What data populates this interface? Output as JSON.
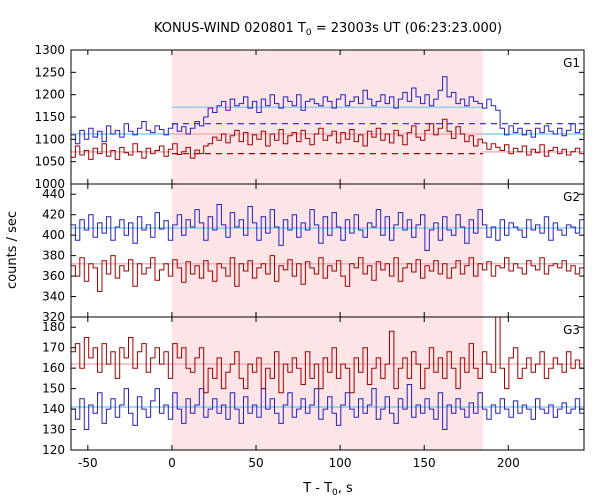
{
  "chart_data": [
    {
      "type": "line",
      "panel": "G1",
      "title": "KONUS-WIND 020801 T",
      "title_sub": "0",
      "title_rest": " = 23003s UT (06:23:23.000)",
      "label": "G1",
      "ylim": [
        1000,
        1300
      ],
      "yticks": [
        1000,
        1050,
        1100,
        1150,
        1200,
        1250,
        1300
      ],
      "xlim": [
        -60,
        245
      ],
      "highlight": [
        0,
        185
      ],
      "colors": {
        "blue": "#2222bb",
        "red": "#a00000",
        "bg_blue": "#6fc8f0",
        "bg_red": "#f0a0a8",
        "shade": "#fde4e6"
      },
      "series": [
        {
          "color": "blue",
          "values": [
            1110,
            1090,
            1120,
            1100,
            1125,
            1105,
            1118,
            1095,
            1130,
            1112,
            1120,
            1105,
            1135,
            1118,
            1110,
            1125,
            1140,
            1120,
            1115,
            1130,
            1122,
            1110,
            1125,
            1135,
            1118,
            1128,
            1112,
            1125,
            1140,
            1130,
            1150,
            1170,
            1160,
            1175,
            1185,
            1165,
            1190,
            1175,
            1180,
            1195,
            1170,
            1185,
            1160,
            1190,
            1175,
            1200,
            1180,
            1170,
            1195,
            1185,
            1175,
            1200,
            1165,
            1185,
            1190,
            1180,
            1175,
            1195,
            1185,
            1170,
            1190,
            1200,
            1175,
            1185,
            1195,
            1180,
            1210,
            1190,
            1175,
            1185,
            1200,
            1180,
            1195,
            1170,
            1190,
            1205,
            1185,
            1215,
            1195,
            1180,
            1200,
            1175,
            1190,
            1210,
            1240,
            1195,
            1205,
            1180,
            1190,
            1175,
            1195,
            1185,
            1180,
            1170,
            1190,
            1175,
            1165,
            1125,
            1110,
            1130,
            1115,
            1125,
            1110,
            1120,
            1105,
            1125,
            1115,
            1130,
            1118,
            1112,
            1125,
            1108,
            1120,
            1135,
            1115,
            1122
          ]
        },
        {
          "color": "red",
          "values": [
            1060,
            1085,
            1065,
            1075,
            1055,
            1080,
            1068,
            1090,
            1062,
            1075,
            1055,
            1082,
            1070,
            1065,
            1090,
            1072,
            1058,
            1080,
            1068,
            1075,
            1085,
            1062,
            1078,
            1090,
            1066,
            1072,
            1082,
            1058,
            1076,
            1068,
            1085,
            1090,
            1105,
            1098,
            1112,
            1092,
            1108,
            1120,
            1095,
            1115,
            1088,
            1110,
            1100,
            1118,
            1085,
            1112,
            1098,
            1122,
            1090,
            1108,
            1115,
            1095,
            1120,
            1102,
            1088,
            1112,
            1125,
            1098,
            1108,
            1118,
            1092,
            1115,
            1100,
            1122,
            1095,
            1110,
            1085,
            1118,
            1105,
            1125,
            1098,
            1112,
            1092,
            1120,
            1108,
            1088,
            1115,
            1130,
            1105,
            1098,
            1120,
            1135,
            1110,
            1125,
            1145,
            1118,
            1102,
            1128,
            1112,
            1095,
            1108,
            1085,
            1100,
            1092,
            1078,
            1090,
            1082,
            1075,
            1088,
            1068,
            1080,
            1072,
            1085,
            1065,
            1078,
            1070,
            1088,
            1062,
            1075,
            1082,
            1068,
            1078,
            1065,
            1072,
            1080,
            1068
          ]
        }
      ],
      "background": [
        {
          "color": "bg_blue",
          "segments": [
            [
              -60,
              0,
              1112
            ],
            [
              0,
              185,
              1172
            ],
            [
              185,
              245,
              1112
            ]
          ]
        },
        {
          "color": "bg_red",
          "segments": [
            [
              -60,
              0,
              1072
            ],
            [
              0,
              185,
              1112
            ],
            [
              185,
              245,
              1072
            ]
          ]
        }
      ],
      "dashed": [
        {
          "color": "blue",
          "x": [
            0,
            245
          ],
          "y": 1135
        },
        {
          "color": "red",
          "x": [
            0,
            185
          ],
          "y": 1068
        }
      ]
    },
    {
      "type": "line",
      "panel": "G2",
      "label": "G2",
      "ylabel": "counts / sec",
      "ylim": [
        320,
        450
      ],
      "yticks": [
        320,
        340,
        360,
        380,
        400,
        420,
        440
      ],
      "xlim": [
        -60,
        245
      ],
      "highlight": [
        0,
        185
      ],
      "series": [
        {
          "color": "blue",
          "values": [
            410,
            395,
            415,
            405,
            420,
            398,
            412,
            402,
            418,
            395,
            408,
            415,
            400,
            412,
            392,
            418,
            405,
            410,
            398,
            422,
            406,
            414,
            395,
            410,
            420,
            400,
            415,
            408,
            425,
            412,
            395,
            418,
            405,
            430,
            410,
            398,
            422,
            408,
            415,
            400,
            428,
            412,
            395,
            418,
            402,
            425,
            408,
            390,
            415,
            405,
            420,
            398,
            412,
            405,
            425,
            410,
            392,
            418,
            400,
            422,
            408,
            395,
            415,
            402,
            420,
            405,
            398,
            412,
            408,
            425,
            400,
            418,
            395,
            410,
            422,
            405,
            415,
            398,
            410,
            420,
            385,
            405,
            412,
            395,
            418,
            405,
            400,
            420,
            408,
            392,
            415,
            402,
            425,
            410,
            398,
            408,
            395,
            415,
            400,
            412,
            408,
            405,
            398,
            415,
            405,
            410,
            402,
            418,
            395,
            412,
            405,
            400,
            410,
            408,
            402,
            415
          ]
        },
        {
          "color": "red",
          "values": [
            370,
            360,
            378,
            355,
            372,
            368,
            345,
            375,
            362,
            380,
            358,
            370,
            365,
            376,
            350,
            372,
            362,
            368,
            378,
            356,
            366,
            372,
            360,
            376,
            368,
            354,
            374,
            362,
            370,
            358,
            375,
            365,
            355,
            372,
            368,
            360,
            378,
            350,
            372,
            365,
            375,
            358,
            368,
            372,
            362,
            380,
            355,
            370,
            366,
            376,
            360,
            372,
            352,
            374,
            368,
            362,
            378,
            358,
            370,
            365,
            375,
            360,
            350,
            372,
            368,
            378,
            362,
            370,
            356,
            374,
            366,
            372,
            360,
            378,
            355,
            368,
            372,
            364,
            376,
            358,
            370,
            365,
            375,
            362,
            372,
            358,
            368,
            375,
            362,
            370,
            378,
            360,
            372,
            366,
            374,
            360,
            370,
            368,
            378,
            365,
            372,
            368,
            362,
            375,
            370,
            366,
            378,
            362,
            370,
            372,
            368,
            375,
            365,
            370,
            362,
            368
          ]
        }
      ],
      "background": [
        {
          "color": "bg_blue",
          "segments": [
            [
              -60,
              245,
              407
            ]
          ]
        },
        {
          "color": "bg_red",
          "segments": [
            [
              -60,
              245,
              372
            ]
          ]
        }
      ]
    },
    {
      "type": "line",
      "panel": "G3",
      "label": "G3",
      "xlabel": "T - T",
      "xlabel_sub": "0",
      "xlabel_rest": ", s",
      "ylim": [
        120,
        185
      ],
      "yticks": [
        120,
        130,
        140,
        150,
        160,
        170,
        180
      ],
      "xlim": [
        -60,
        245
      ],
      "xticks": [
        -50,
        0,
        50,
        100,
        150,
        200
      ],
      "highlight": [
        0,
        185
      ],
      "series": [
        {
          "color": "blue",
          "values": [
            140,
            135,
            145,
            130,
            142,
            138,
            148,
            133,
            140,
            145,
            136,
            142,
            150,
            138,
            132,
            146,
            140,
            136,
            144,
            150,
            138,
            142,
            135,
            148,
            140,
            133,
            145,
            138,
            142,
            150,
            136,
            140,
            145,
            138,
            142,
            135,
            148,
            140,
            133,
            146,
            138,
            142,
            136,
            150,
            140,
            145,
            138,
            133,
            142,
            148,
            136,
            140,
            145,
            138,
            142,
            150,
            135,
            140,
            146,
            138,
            132,
            142,
            148,
            140,
            136,
            145,
            138,
            142,
            150,
            135,
            140,
            146,
            138,
            133,
            145,
            140,
            152,
            136,
            142,
            138,
            145,
            140,
            135,
            148,
            130,
            142,
            138,
            145,
            140,
            136,
            143,
            138,
            148,
            140,
            135,
            142,
            138,
            145,
            140,
            136,
            144,
            138,
            142,
            140,
            135,
            145,
            140,
            138,
            142,
            136,
            140,
            143,
            138,
            140,
            145,
            138
          ]
        },
        {
          "color": "red",
          "values": [
            168,
            172,
            160,
            175,
            165,
            170,
            158,
            172,
            162,
            168,
            155,
            170,
            165,
            175,
            160,
            168,
            172,
            158,
            165,
            170,
            162,
            168,
            155,
            172,
            165,
            170,
            160,
            158,
            165,
            170,
            148,
            160,
            155,
            165,
            150,
            158,
            162,
            168,
            155,
            150,
            162,
            158,
            165,
            150,
            160,
            155,
            168,
            148,
            162,
            158,
            165,
            160,
            152,
            168,
            155,
            162,
            150,
            165,
            158,
            170,
            155,
            162,
            160,
            148,
            165,
            158,
            170,
            152,
            160,
            165,
            155,
            162,
            178,
            150,
            160,
            165,
            155,
            168,
            162,
            150,
            160,
            170,
            158,
            165,
            155,
            168,
            160,
            150,
            165,
            158,
            172,
            160,
            155,
            168,
            162,
            158,
            185,
            160,
            150,
            165,
            170,
            155,
            160,
            165,
            158,
            162,
            168,
            155,
            160,
            165,
            162,
            158,
            168,
            160,
            164,
            160
          ]
        }
      ],
      "background": [
        {
          "color": "bg_blue",
          "segments": [
            [
              -60,
              245,
              141
            ]
          ]
        },
        {
          "color": "bg_red",
          "segments": [
            [
              -60,
              245,
              162
            ]
          ]
        }
      ]
    }
  ]
}
